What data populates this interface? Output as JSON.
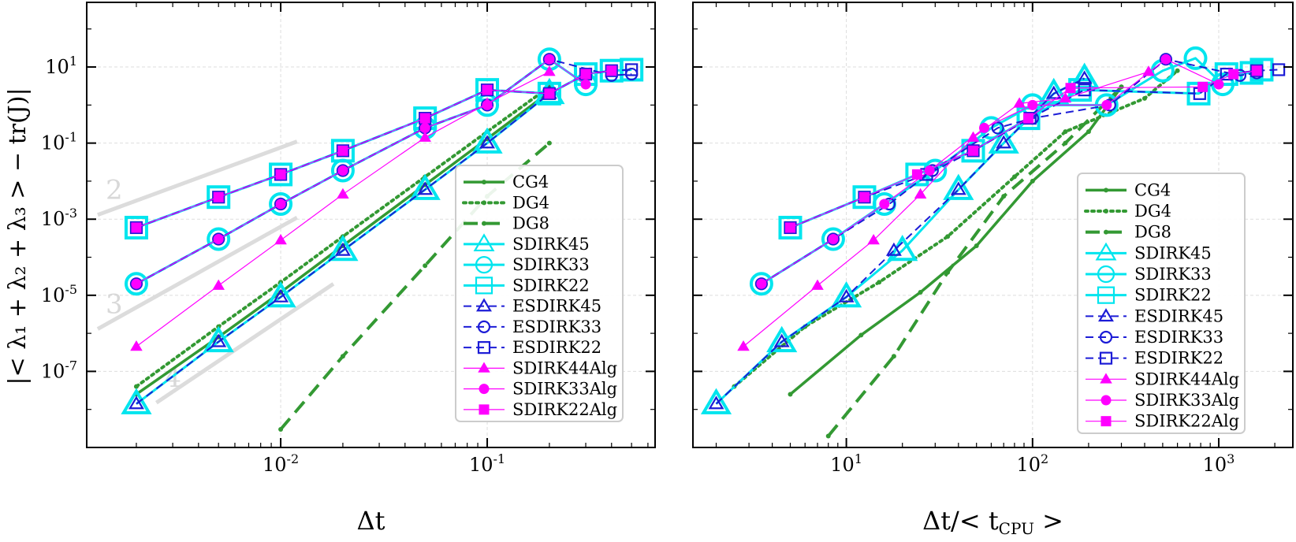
{
  "figure": {
    "ylabel": "|< λ₁ + λ₂ + λ₃ > − tr(J)|",
    "panels_xlabels": [
      "Δt",
      "Δt/< t_CPU >"
    ]
  },
  "chart_data": [
    {
      "type": "line",
      "xlabel": "Δt",
      "ylabel": "|< λ₁ + λ₂ + λ₃ > − tr(J)|",
      "xscale": "log",
      "yscale": "log",
      "xlim": [
        0.00115,
        0.65
      ],
      "ylim": [
        1e-09,
        500
      ],
      "xticks": [
        {
          "value": 0.01,
          "base": "10",
          "exp": "-2"
        },
        {
          "value": 0.1,
          "base": "10",
          "exp": "-1"
        }
      ],
      "yticks": [
        {
          "value": 1e-07,
          "base": "10",
          "exp": "-7"
        },
        {
          "value": 1e-05,
          "base": "10",
          "exp": "-5"
        },
        {
          "value": 0.001,
          "base": "10",
          "exp": "-3"
        },
        {
          "value": 0.1,
          "base": "10",
          "exp": "-1"
        },
        {
          "value": 10,
          "base": "10",
          "exp": "1"
        }
      ],
      "grid": true,
      "legend_position": "lower-right",
      "slope_guides": [
        {
          "label": "2",
          "x": [
            0.0013,
            0.012
          ],
          "y": [
            0.0013,
            0.11
          ]
        },
        {
          "label": "3",
          "x": [
            0.0013,
            0.012
          ],
          "y": [
            1.3e-06,
            0.0011
          ]
        },
        {
          "label": "4",
          "x": [
            0.0025,
            0.018
          ],
          "y": [
            1.5e-08,
            2e-05
          ]
        }
      ],
      "series": [
        {
          "name": "CG4",
          "color": "#339933",
          "dash": "solid",
          "width": 3.5,
          "marker": "dot",
          "msize": 3,
          "hollow": false,
          "x": [
            0.002,
            0.005,
            0.01,
            0.02,
            0.05,
            0.1,
            0.2
          ],
          "y": [
            2.5e-08,
            8e-07,
            1.2e-05,
            0.0002,
            0.008,
            0.13,
            2.2
          ]
        },
        {
          "name": "DG4",
          "color": "#339933",
          "dash": "dotted",
          "width": 4,
          "marker": "dot",
          "msize": 3,
          "hollow": false,
          "x": [
            0.002,
            0.005,
            0.01,
            0.02,
            0.05,
            0.1,
            0.2
          ],
          "y": [
            4e-08,
            1.5e-06,
            2.2e-05,
            0.00035,
            0.013,
            0.2,
            3
          ]
        },
        {
          "name": "DG8",
          "color": "#339933",
          "dash": "dashed",
          "width": 4,
          "marker": "dot",
          "msize": 3,
          "hollow": false,
          "x": [
            0.01,
            0.02,
            0.05,
            0.1,
            0.2
          ],
          "y": [
            3e-09,
            2.5e-07,
            6e-05,
            0.004,
            0.1
          ]
        },
        {
          "name": "SDIRK45",
          "color": "#00e5ee",
          "dash": "solid",
          "width": 3,
          "marker": "triangle",
          "msize": 14,
          "hollow": true,
          "x": [
            0.002,
            0.005,
            0.01,
            0.02,
            0.05,
            0.1,
            0.2
          ],
          "y": [
            1.4e-08,
            6e-07,
            9e-06,
            0.00015,
            0.006,
            0.1,
            2
          ]
        },
        {
          "name": "SDIRK33",
          "color": "#00e5ee",
          "dash": "solid",
          "width": 3,
          "marker": "circle",
          "msize": 13,
          "hollow": true,
          "x": [
            0.002,
            0.005,
            0.01,
            0.02,
            0.05,
            0.1,
            0.2,
            0.3
          ],
          "y": [
            2e-05,
            0.0003,
            0.0025,
            0.019,
            0.25,
            1,
            16,
            3.5
          ]
        },
        {
          "name": "SDIRK22",
          "color": "#00e5ee",
          "dash": "solid",
          "width": 3,
          "marker": "square",
          "msize": 13,
          "hollow": true,
          "x": [
            0.002,
            0.005,
            0.01,
            0.02,
            0.05,
            0.1,
            0.2,
            0.3,
            0.4,
            0.5
          ],
          "y": [
            0.0006,
            0.0038,
            0.015,
            0.063,
            0.45,
            2.5,
            2,
            6.5,
            8,
            8.5
          ]
        },
        {
          "name": "ESDIRK45",
          "color": "#1c1cd6",
          "dash": "dashed",
          "width": 2,
          "marker": "triangle",
          "msize": 7,
          "hollow": true,
          "x": [
            0.002,
            0.005,
            0.01,
            0.02,
            0.05,
            0.1,
            0.2
          ],
          "y": [
            1.4e-08,
            6e-07,
            9e-06,
            0.00015,
            0.006,
            0.1,
            2
          ]
        },
        {
          "name": "ESDIRK33",
          "color": "#1c1cd6",
          "dash": "dashed",
          "width": 2,
          "marker": "circle",
          "msize": 7,
          "hollow": true,
          "x": [
            0.002,
            0.005,
            0.01,
            0.02,
            0.05,
            0.1,
            0.2,
            0.4,
            0.5
          ],
          "y": [
            2e-05,
            0.0003,
            0.0025,
            0.019,
            0.25,
            1,
            16,
            6,
            6.5
          ]
        },
        {
          "name": "ESDIRK22",
          "color": "#1c1cd6",
          "dash": "dashed",
          "width": 2,
          "marker": "square",
          "msize": 7,
          "hollow": true,
          "x": [
            0.002,
            0.005,
            0.01,
            0.02,
            0.05,
            0.1,
            0.2,
            0.3,
            0.4,
            0.5
          ],
          "y": [
            0.0006,
            0.0038,
            0.015,
            0.063,
            0.45,
            2.5,
            2,
            6.5,
            8,
            8.5
          ]
        },
        {
          "name": "SDIRK44Alg",
          "color": "#ff00ff",
          "dash": "solid",
          "width": 1.2,
          "marker": "filled-triangle",
          "msize": 6,
          "hollow": false,
          "x": [
            0.002,
            0.005,
            0.01,
            0.02,
            0.05,
            0.1,
            0.2
          ],
          "y": [
            4.5e-07,
            1.8e-05,
            0.00028,
            0.0045,
            0.14,
            1.1,
            7.5
          ]
        },
        {
          "name": "SDIRK33Alg",
          "color": "#ff00ff",
          "dash": "solid",
          "width": 1.2,
          "marker": "filled-circle",
          "msize": 6,
          "hollow": false,
          "x": [
            0.002,
            0.005,
            0.01,
            0.02,
            0.05,
            0.1,
            0.2,
            0.3
          ],
          "y": [
            2e-05,
            0.0003,
            0.0025,
            0.019,
            0.25,
            1,
            16,
            3.5
          ]
        },
        {
          "name": "SDIRK22Alg",
          "color": "#ff00ff",
          "dash": "solid",
          "width": 1.2,
          "marker": "filled-square",
          "msize": 6,
          "hollow": false,
          "x": [
            0.002,
            0.005,
            0.01,
            0.02,
            0.05,
            0.1,
            0.2,
            0.3,
            0.4
          ],
          "y": [
            0.0006,
            0.0038,
            0.015,
            0.063,
            0.45,
            2.5,
            2,
            6.5,
            8
          ]
        }
      ]
    },
    {
      "type": "line",
      "xlabel": "Δt/< t_CPU >",
      "xscale": "log",
      "yscale": "log",
      "xlim": [
        1.5,
        2500
      ],
      "ylim": [
        1e-09,
        500
      ],
      "xticks": [
        {
          "value": 10,
          "base": "10",
          "exp": "1"
        },
        {
          "value": 100,
          "base": "10",
          "exp": "2"
        },
        {
          "value": 1000,
          "base": "10",
          "exp": "3"
        }
      ],
      "yticks": [
        {
          "value": 1e-07,
          "base": "10",
          "exp": "-7"
        },
        {
          "value": 1e-05,
          "base": "10",
          "exp": "-5"
        },
        {
          "value": 0.001,
          "base": "10",
          "exp": "-3"
        },
        {
          "value": 0.1,
          "base": "10",
          "exp": "-1"
        },
        {
          "value": 10,
          "base": "10",
          "exp": "1"
        }
      ],
      "grid": true,
      "legend_position": "lower-right",
      "series": [
        {
          "name": "CG4",
          "color": "#339933",
          "dash": "solid",
          "width": 3.5,
          "marker": "dot",
          "msize": 3,
          "hollow": false,
          "x": [
            5,
            12,
            25,
            50,
            100,
            200,
            300
          ],
          "y": [
            2.5e-08,
            9e-07,
            1.2e-05,
            0.0002,
            0.01,
            0.2,
            3
          ]
        },
        {
          "name": "DG4",
          "color": "#339933",
          "dash": "dotted",
          "width": 4,
          "marker": "dot",
          "msize": 3,
          "hollow": false,
          "x": [
            2.5,
            6,
            15,
            35,
            80,
            150,
            400,
            600
          ],
          "y": [
            4e-08,
            1.5e-06,
            2.2e-05,
            0.00035,
            0.013,
            0.2,
            1.5,
            8
          ]
        },
        {
          "name": "DG8",
          "color": "#339933",
          "dash": "dashed",
          "width": 4,
          "marker": "dot",
          "msize": 3,
          "hollow": false,
          "x": [
            8,
            18,
            35,
            70,
            150,
            300
          ],
          "y": [
            2e-09,
            2.5e-07,
            4e-05,
            0.004,
            0.1,
            3
          ]
        },
        {
          "name": "SDIRK45",
          "color": "#00e5ee",
          "dash": "solid",
          "width": 3,
          "marker": "triangle",
          "msize": 14,
          "hollow": true,
          "x": [
            2,
            4.5,
            10,
            20,
            40,
            70,
            130,
            190
          ],
          "y": [
            1.4e-08,
            6e-07,
            9e-06,
            0.00015,
            0.006,
            0.1,
            2,
            5
          ]
        },
        {
          "name": "SDIRK33",
          "color": "#00e5ee",
          "dash": "solid",
          "width": 3,
          "marker": "circle",
          "msize": 13,
          "hollow": true,
          "x": [
            3.5,
            8.5,
            16,
            30,
            60,
            100,
            250,
            500,
            750,
            1050
          ],
          "y": [
            2e-05,
            0.0003,
            0.0025,
            0.019,
            0.25,
            1,
            1,
            8,
            17,
            3.5
          ]
        },
        {
          "name": "SDIRK22",
          "color": "#00e5ee",
          "dash": "solid",
          "width": 3,
          "marker": "square",
          "msize": 13,
          "hollow": true,
          "x": [
            5,
            12.5,
            24,
            48,
            95,
            180,
            780,
            1100,
            1500,
            1700
          ],
          "y": [
            0.0006,
            0.0038,
            0.015,
            0.063,
            0.45,
            2.5,
            2,
            6.5,
            7,
            8.5
          ]
        },
        {
          "name": "ESDIRK45",
          "color": "#1c1cd6",
          "dash": "dashed",
          "width": 2,
          "marker": "triangle",
          "msize": 7,
          "hollow": true,
          "x": [
            2,
            4.5,
            10,
            18,
            40,
            70,
            130,
            190
          ],
          "y": [
            1.4e-08,
            6e-07,
            9e-06,
            0.00015,
            0.006,
            0.1,
            2,
            5
          ]
        },
        {
          "name": "ESDIRK33",
          "color": "#1c1cd6",
          "dash": "dashed",
          "width": 2,
          "marker": "circle",
          "msize": 7,
          "hollow": true,
          "x": [
            3.5,
            8.5,
            17,
            29,
            65,
            100,
            260,
            520,
            1300,
            1600
          ],
          "y": [
            2e-05,
            0.0003,
            0.0025,
            0.019,
            0.25,
            0.45,
            1,
            16,
            6,
            7
          ]
        },
        {
          "name": "ESDIRK22",
          "color": "#1c1cd6",
          "dash": "dashed",
          "width": 2,
          "marker": "square",
          "msize": 7,
          "hollow": true,
          "x": [
            5,
            12.5,
            27,
            48,
            97,
            190,
            790,
            1100,
            1600,
            2100
          ],
          "y": [
            0.0006,
            0.0038,
            0.015,
            0.063,
            0.45,
            2.5,
            2,
            6.5,
            8,
            8.5
          ]
        },
        {
          "name": "SDIRK44Alg",
          "color": "#ff00ff",
          "dash": "solid",
          "width": 1.2,
          "marker": "filled-triangle",
          "msize": 6,
          "hollow": false,
          "x": [
            2.8,
            7,
            14,
            25,
            48,
            85,
            150,
            420
          ],
          "y": [
            4.5e-07,
            1.8e-05,
            0.00028,
            0.0045,
            0.14,
            1.1,
            1.5,
            7.5
          ]
        },
        {
          "name": "SDIRK33Alg",
          "color": "#ff00ff",
          "dash": "solid",
          "width": 1.2,
          "marker": "filled-circle",
          "msize": 6,
          "hollow": false,
          "x": [
            3.5,
            8.5,
            16,
            28,
            55,
            100,
            250,
            520,
            1000
          ],
          "y": [
            2e-05,
            0.0003,
            0.0025,
            0.019,
            0.25,
            1,
            1,
            16,
            3.5
          ]
        },
        {
          "name": "SDIRK22Alg",
          "color": "#ff00ff",
          "dash": "solid",
          "width": 1.2,
          "marker": "filled-square",
          "msize": 6,
          "hollow": false,
          "x": [
            5,
            12.5,
            24,
            48,
            95,
            160,
            820,
            1200,
            1600
          ],
          "y": [
            0.0006,
            0.0038,
            0.015,
            0.063,
            0.45,
            2.8,
            3,
            6.5,
            8
          ]
        }
      ]
    }
  ]
}
